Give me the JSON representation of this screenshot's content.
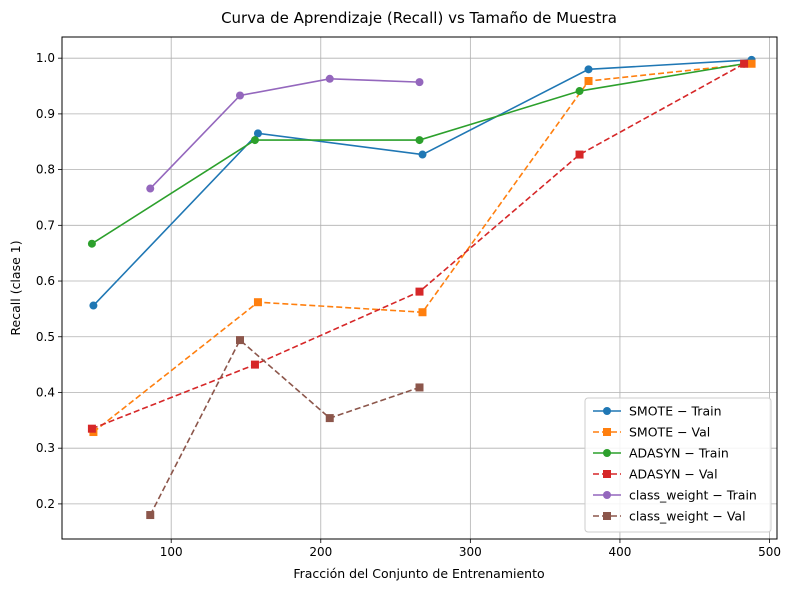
{
  "chart_data": {
    "type": "line",
    "title": "Curva de Aprendizaje (Recall) vs Tamaño de Muestra",
    "xlabel": "Fracción del Conjunto de Entrenamiento",
    "ylabel": "Recall (clase 1)",
    "xlim": [
      27,
      505
    ],
    "ylim": [
      0.137,
      1.038
    ],
    "xticks": [
      100,
      200,
      300,
      400,
      500
    ],
    "yticks": [
      0.2,
      0.3,
      0.4,
      0.5,
      0.6,
      0.7,
      0.8,
      0.9,
      1.0
    ],
    "xtick_labels": [
      "100",
      "200",
      "300",
      "400",
      "500"
    ],
    "ytick_labels": [
      "0.2",
      "0.3",
      "0.4",
      "0.5",
      "0.6",
      "0.7",
      "0.8",
      "0.9",
      "1.0"
    ],
    "grid": true,
    "legend_position": "lower-right",
    "series": [
      {
        "name": "SMOTE − Train",
        "color": "#1f77b4",
        "style": "solid",
        "marker": "circle",
        "x": [
          48,
          158,
          268,
          379,
          488
        ],
        "y": [
          0.556,
          0.865,
          0.827,
          0.98,
          0.997
        ]
      },
      {
        "name": "SMOTE − Val",
        "color": "#ff7f0e",
        "style": "dashed",
        "marker": "square",
        "x": [
          48,
          158,
          268,
          379,
          488
        ],
        "y": [
          0.329,
          0.562,
          0.544,
          0.959,
          0.99
        ]
      },
      {
        "name": "ADASYN − Train",
        "color": "#2ca02c",
        "style": "solid",
        "marker": "circle",
        "x": [
          47,
          156,
          266,
          373,
          483
        ],
        "y": [
          0.667,
          0.853,
          0.853,
          0.941,
          0.99
        ]
      },
      {
        "name": "ADASYN − Val",
        "color": "#d62728",
        "style": "dashed",
        "marker": "square",
        "x": [
          47,
          156,
          266,
          373,
          483
        ],
        "y": [
          0.335,
          0.45,
          0.581,
          0.827,
          0.99
        ]
      },
      {
        "name": "class_weight − Train",
        "color": "#9467bd",
        "style": "solid",
        "marker": "circle",
        "x": [
          86,
          146,
          206,
          266
        ],
        "y": [
          0.766,
          0.933,
          0.963,
          0.957
        ]
      },
      {
        "name": "class_weight − Val",
        "color": "#8c564b",
        "style": "dashed",
        "marker": "square",
        "x": [
          86,
          146,
          206,
          266
        ],
        "y": [
          0.18,
          0.494,
          0.354,
          0.409
        ]
      }
    ]
  }
}
